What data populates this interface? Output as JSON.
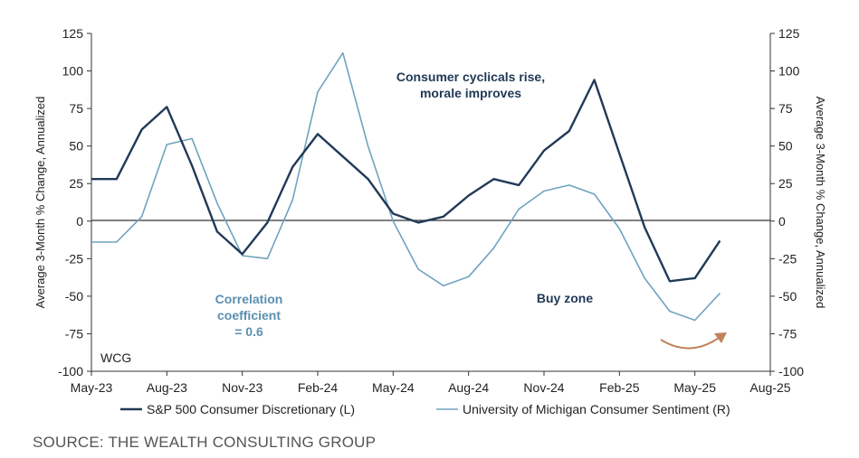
{
  "chart_data": {
    "type": "line",
    "x": [
      "2023-05",
      "2023-06",
      "2023-07",
      "2023-08",
      "2023-09",
      "2023-10",
      "2023-11",
      "2023-12",
      "2024-01",
      "2024-02",
      "2024-03",
      "2024-04",
      "2024-05",
      "2024-06",
      "2024-07",
      "2024-08",
      "2024-09",
      "2024-10",
      "2024-11",
      "2024-12",
      "2025-01",
      "2025-02",
      "2025-03",
      "2025-04",
      "2025-05",
      "2025-06"
    ],
    "x_ticks": [
      "May-23",
      "Aug-23",
      "Nov-23",
      "Feb-24",
      "May-24",
      "Aug-24",
      "Nov-24",
      "Feb-25",
      "May-25",
      "Aug-25"
    ],
    "xlim": [
      "2023-05",
      "2025-08"
    ],
    "ylabel_left": "Average 3-Month % Change, Annualized",
    "ylabel_right": "Average 3-Month % Change, Annualized",
    "ylim": [
      -100,
      125
    ],
    "y_ticks": [
      "-100",
      "-75",
      "-50",
      "-25",
      "0",
      "25",
      "50",
      "75",
      "100",
      "125"
    ],
    "series": [
      {
        "name": "S&P 500 Consumer Discretionary (L)",
        "color": "#213a57",
        "axis": "left",
        "values": [
          28,
          28,
          61,
          76,
          37,
          -7,
          -22,
          -1,
          36,
          58,
          43,
          28,
          5,
          -1,
          3,
          17,
          28,
          24,
          47,
          60,
          94,
          45,
          -4,
          -40,
          -38,
          -13
        ]
      },
      {
        "name": "University of Michigan Consumer Sentiment (R)",
        "color": "#6fa3bf",
        "axis": "right",
        "values": [
          -14,
          -14,
          3,
          51,
          55,
          12,
          -23,
          -25,
          14,
          86,
          112,
          50,
          0,
          -32,
          -43,
          -37,
          -18,
          8,
          20,
          24,
          18,
          -5,
          -38,
          -60,
          -66,
          -48
        ]
      }
    ],
    "annotations": {
      "top_line1": "Consumer cyclicals rise,",
      "top_line2": "morale improves",
      "corr_line1": "Correlation",
      "corr_line2": "coefficient",
      "corr_line3": "= 0.6",
      "buy_zone": "Buy zone",
      "watermark": "WCG"
    },
    "colors": {
      "annot_dark": "#213a57",
      "annot_light": "#5b8fb0",
      "arrow": "#c0825a",
      "zero_line": "#333333"
    },
    "grid": false,
    "legend_position": "bottom"
  },
  "source": "SOURCE: THE WEALTH CONSULTING GROUP"
}
